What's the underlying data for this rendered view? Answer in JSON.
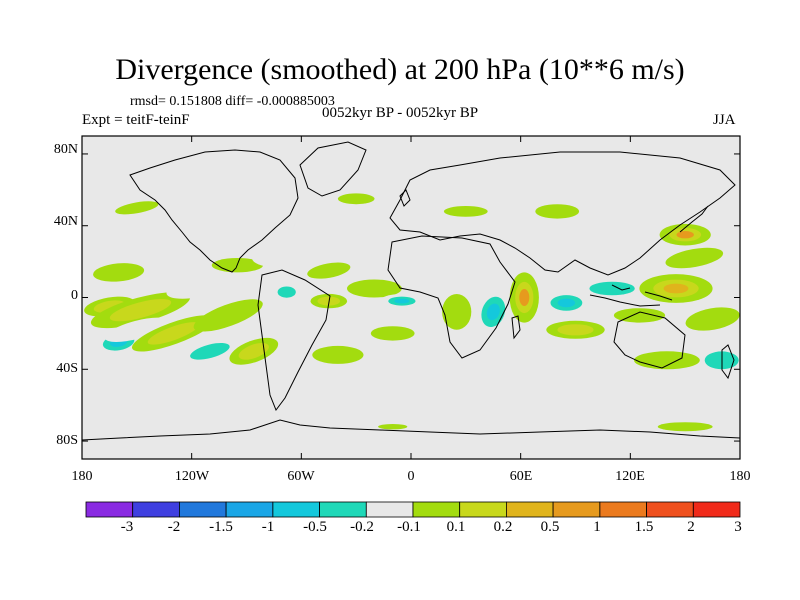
{
  "title": "Divergence (smoothed) at 200 hPa (10**6 m/s)",
  "stats_text": "rmsd= 0.151808 diff= -0.000885003",
  "experiment_text": "Expt = teitF-teinF",
  "period_text": "0052kyr BP - 0052kyr BP",
  "season_text": "JJA",
  "lat_ticks": [
    {
      "label": "80N",
      "lat": 80
    },
    {
      "label": "40N",
      "lat": 40
    },
    {
      "label": "0",
      "lat": 0
    },
    {
      "label": "40S",
      "lat": -40
    },
    {
      "label": "80S",
      "lat": -80
    }
  ],
  "lon_ticks": [
    {
      "label": "180",
      "lon": -180
    },
    {
      "label": "120W",
      "lon": -120
    },
    {
      "label": "60W",
      "lon": -60
    },
    {
      "label": "0",
      "lon": 0
    },
    {
      "label": "60E",
      "lon": 60
    },
    {
      "label": "120E",
      "lon": 120
    },
    {
      "label": "180",
      "lon": 180
    }
  ],
  "colorbar": {
    "colors": [
      "#8a2be2",
      "#3f3fe0",
      "#2178dc",
      "#1aa6e6",
      "#14c8dc",
      "#1fd8b8",
      "#e8e8e8",
      "#a3dc0f",
      "#c8d81c",
      "#e0b41c",
      "#e69a1e",
      "#eb7a1e",
      "#ef501e",
      "#f02a1a"
    ],
    "labels": [
      "-3",
      "-2",
      "-1.5",
      "-1",
      "-0.5",
      "-0.2",
      "-0.1",
      "0.1",
      "0.2",
      "0.5",
      "1",
      "1.5",
      "2",
      "3"
    ]
  },
  "chart_data": {
    "type": "heatmap",
    "variable": "Divergence (smoothed) at 200 hPa",
    "units": "10**6 m/s",
    "levels": [
      -3,
      -2,
      -1.5,
      -1,
      -0.5,
      -0.2,
      -0.1,
      0.1,
      0.2,
      0.5,
      1,
      1.5,
      2,
      3
    ],
    "xlim": [
      -180,
      180
    ],
    "ylim": [
      -90,
      90
    ],
    "blobs": [
      {
        "lon": -170,
        "lat": 25,
        "rx": 15,
        "ry": 5,
        "v": -0.3,
        "rot": -5
      },
      {
        "lon": -160,
        "lat": 14,
        "rx": 14,
        "ry": 5,
        "v": 0.4,
        "rot": -5
      },
      {
        "lon": -165,
        "lat": -5,
        "rx": 14,
        "ry": 5,
        "v": 0.6,
        "rot": -10
      },
      {
        "lon": -148,
        "lat": -7,
        "rx": 28,
        "ry": 7,
        "v": 0.5,
        "rot": -15
      },
      {
        "lon": -160,
        "lat": -25,
        "rx": 14,
        "ry": 7,
        "v": -0.8,
        "rot": -10
      },
      {
        "lon": -150,
        "lat": -18,
        "rx": 18,
        "ry": 5,
        "v": -0.4,
        "rot": -15
      },
      {
        "lon": -130,
        "lat": -20,
        "rx": 24,
        "ry": 6,
        "v": 0.5,
        "rot": -20
      },
      {
        "lon": -110,
        "lat": -30,
        "rx": 18,
        "ry": 6,
        "v": -0.5,
        "rot": -15
      },
      {
        "lon": -118,
        "lat": 5,
        "rx": 16,
        "ry": 5,
        "v": -0.3,
        "rot": -10
      },
      {
        "lon": -100,
        "lat": -10,
        "rx": 20,
        "ry": 6,
        "v": 0.4,
        "rot": -20
      },
      {
        "lon": -86,
        "lat": -30,
        "rx": 14,
        "ry": 6,
        "v": 0.5,
        "rot": -20
      },
      {
        "lon": -95,
        "lat": 18,
        "rx": 14,
        "ry": 4,
        "v": 0.3,
        "rot": 0
      },
      {
        "lon": -75,
        "lat": 22,
        "rx": 12,
        "ry": 5,
        "v": -0.4,
        "rot": 0
      },
      {
        "lon": -68,
        "lat": 3,
        "rx": 8,
        "ry": 5,
        "v": -0.5,
        "rot": 0
      },
      {
        "lon": -45,
        "lat": 15,
        "rx": 12,
        "ry": 4,
        "v": 0.4,
        "rot": -10
      },
      {
        "lon": -45,
        "lat": -2,
        "rx": 10,
        "ry": 4,
        "v": 0.5,
        "rot": 0
      },
      {
        "lon": -40,
        "lat": -32,
        "rx": 14,
        "ry": 5,
        "v": 0.4,
        "rot": 0
      },
      {
        "lon": -20,
        "lat": 5,
        "rx": 15,
        "ry": 5,
        "v": 0.3,
        "rot": 0
      },
      {
        "lon": -5,
        "lat": -2,
        "rx": 12,
        "ry": 4,
        "v": -0.8,
        "rot": 0
      },
      {
        "lon": -10,
        "lat": -20,
        "rx": 12,
        "ry": 4,
        "v": 0.3,
        "rot": 0
      },
      {
        "lon": 25,
        "lat": -8,
        "rx": 8,
        "ry": 10,
        "v": 0.4,
        "rot": 0
      },
      {
        "lon": 45,
        "lat": -8,
        "rx": 10,
        "ry": 14,
        "v": -0.8,
        "rot": 20
      },
      {
        "lon": 62,
        "lat": 0,
        "rx": 8,
        "ry": 14,
        "v": 1.2,
        "rot": 0
      },
      {
        "lon": 85,
        "lat": -3,
        "rx": 14,
        "ry": 7,
        "v": -0.8,
        "rot": 0
      },
      {
        "lon": 90,
        "lat": -18,
        "rx": 16,
        "ry": 5,
        "v": 0.5,
        "rot": 0
      },
      {
        "lon": 110,
        "lat": 5,
        "rx": 20,
        "ry": 6,
        "v": -0.5,
        "rot": 0
      },
      {
        "lon": 125,
        "lat": -10,
        "rx": 14,
        "ry": 4,
        "v": 0.3,
        "rot": 0
      },
      {
        "lon": 135,
        "lat": 25,
        "rx": 25,
        "ry": 7,
        "v": -0.4,
        "rot": 0
      },
      {
        "lon": 145,
        "lat": 5,
        "rx": 20,
        "ry": 8,
        "v": 0.8,
        "rot": 0
      },
      {
        "lon": 150,
        "lat": 35,
        "rx": 14,
        "ry": 6,
        "v": 1.0,
        "rot": 0
      },
      {
        "lon": 155,
        "lat": 22,
        "rx": 16,
        "ry": 5,
        "v": 0.3,
        "rot": -10
      },
      {
        "lon": 165,
        "lat": -12,
        "rx": 15,
        "ry": 6,
        "v": 0.4,
        "rot": -10
      },
      {
        "lon": 170,
        "lat": -35,
        "rx": 15,
        "ry": 8,
        "v": -0.6,
        "rot": 0
      },
      {
        "lon": 140,
        "lat": -35,
        "rx": 18,
        "ry": 5,
        "v": 0.3,
        "rot": 0
      },
      {
        "lon": 150,
        "lat": -72,
        "rx": 15,
        "ry": 2.5,
        "v": 0.3,
        "rot": 0
      },
      {
        "lon": -10,
        "lat": -72,
        "rx": 8,
        "ry": 1.5,
        "v": 0.2,
        "rot": 0
      },
      {
        "lon": 30,
        "lat": 48,
        "rx": 12,
        "ry": 3,
        "v": 0.3,
        "rot": 0
      },
      {
        "lon": 80,
        "lat": 48,
        "rx": 12,
        "ry": 4,
        "v": 0.4,
        "rot": 0
      },
      {
        "lon": 90,
        "lat": 30,
        "rx": 14,
        "ry": 3,
        "v": -0.3,
        "rot": 0
      },
      {
        "lon": -150,
        "lat": 50,
        "rx": 12,
        "ry": 3,
        "v": 0.4,
        "rot": -10
      },
      {
        "lon": -30,
        "lat": 55,
        "rx": 10,
        "ry": 3,
        "v": 0.3,
        "rot": 0
      }
    ]
  }
}
